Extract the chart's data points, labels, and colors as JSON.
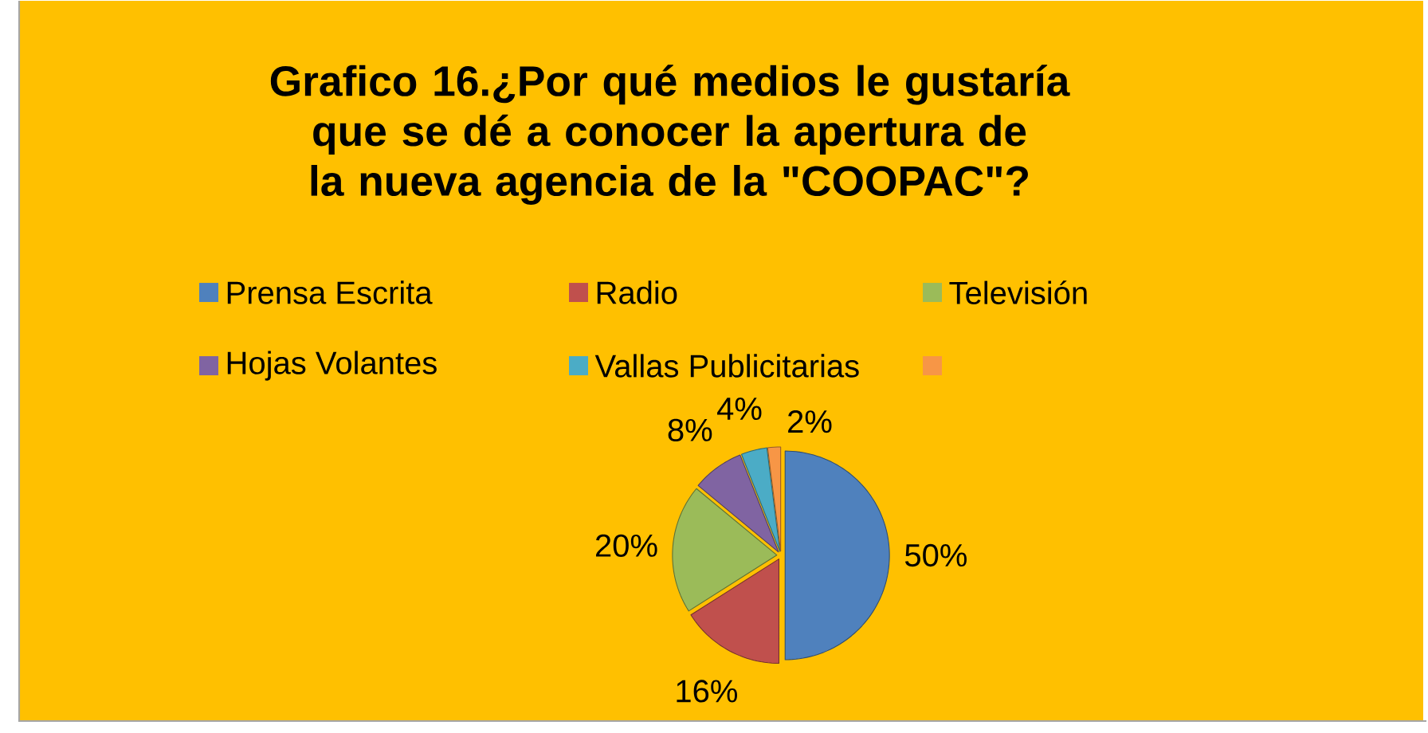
{
  "chart_data": {
    "type": "pie",
    "title": "Grafico 16.¿Por qué medios le gustaría que se dé a conocer la apertura de la nueva agencia de la \"COOPAC\"?",
    "categories": [
      "Prensa Escrita",
      "Radio",
      "Televisión",
      "Hojas Volantes",
      "Vallas Publicitarias",
      null
    ],
    "values": [
      50,
      16,
      20,
      8,
      4,
      2
    ],
    "value_labels": [
      "50%",
      "16%",
      "20%",
      "8%",
      "4%",
      "2%"
    ],
    "colors": [
      "#4f81bd",
      "#c0504d",
      "#9bbb59",
      "#8064a2",
      "#4bacc6",
      "#f79646"
    ],
    "legend": "top"
  }
}
